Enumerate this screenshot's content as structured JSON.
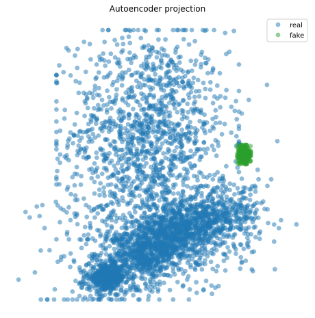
{
  "chart_data": {
    "type": "scatter",
    "title": "Autoencoder projection",
    "xlabel": "",
    "ylabel": "",
    "axes_visible": false,
    "grid": false,
    "legend_position": "top-right",
    "xlim": [
      -1.0,
      1.0
    ],
    "ylim": [
      -1.0,
      1.0
    ],
    "series": [
      {
        "name": "real",
        "color": "#1f77b4",
        "alpha": 0.5,
        "points_described_as_clusters": true,
        "clusters": [
          {
            "cx": -0.06,
            "cy": 0.22,
            "sx": 0.28,
            "sy": 0.38,
            "n": 1300,
            "xmin": -0.72,
            "xmax": 0.58,
            "ymin": -0.55,
            "ymax": 0.98
          },
          {
            "cx": 0.03,
            "cy": -0.58,
            "sx": 0.3,
            "sy": 0.11,
            "n": 1500,
            "rot": 0.52
          },
          {
            "cx": -0.36,
            "cy": -0.83,
            "sx": 0.065,
            "sy": 0.045,
            "n": 350
          },
          {
            "cx": 0.44,
            "cy": -0.4,
            "sx": 0.15,
            "sy": 0.08,
            "n": 250
          },
          {
            "cx": 0.0,
            "cy": -0.52,
            "sx": 0.33,
            "sy": 0.22,
            "n": 450
          }
        ],
        "outliers": [
          [
            -0.94,
            -0.35
          ],
          [
            -0.91,
            -0.39
          ],
          [
            -0.86,
            -0.31
          ],
          [
            -0.82,
            -0.3
          ],
          [
            -0.84,
            -0.38
          ],
          [
            -0.62,
            -0.41
          ],
          [
            0.88,
            -0.41
          ],
          [
            0.78,
            0.58
          ],
          [
            0.65,
            0.47
          ],
          [
            0.6,
            0.37
          ],
          [
            0.55,
            0.39
          ]
        ]
      },
      {
        "name": "fake",
        "color": "#2ca02c",
        "alpha": 0.5,
        "points_described_as_clusters": true,
        "clusters": [
          {
            "cx": 0.615,
            "cy": 0.07,
            "sx": 0.025,
            "sy": 0.035,
            "n": 220,
            "xmin": 0.57,
            "xmax": 0.665,
            "ymin": -0.0,
            "ymax": 0.14
          }
        ],
        "outliers": []
      }
    ]
  }
}
